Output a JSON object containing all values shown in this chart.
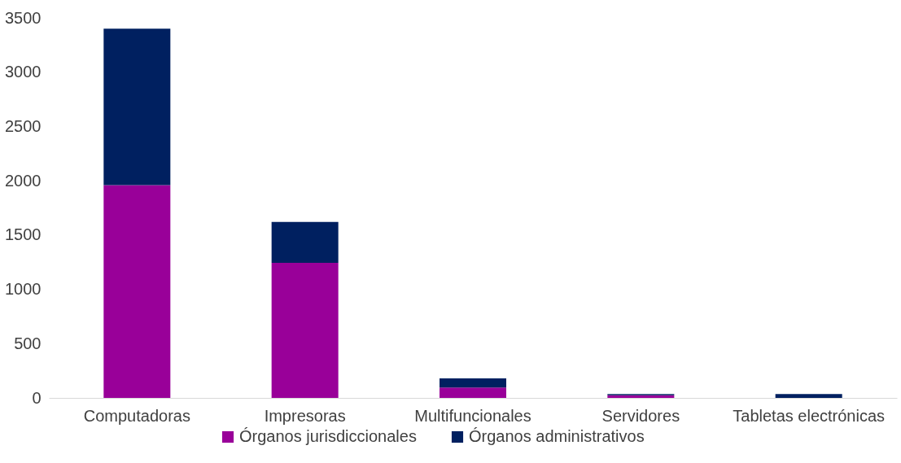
{
  "chart_data": {
    "type": "bar",
    "stacked": true,
    "categories": [
      "Computadoras",
      "Impresoras",
      "Multifuncionales",
      "Servidores",
      "Tabletas electrónicas"
    ],
    "series": [
      {
        "name": "Órganos jurisdiccionales",
        "color": "#990099",
        "values": [
          1960,
          1245,
          95,
          25,
          0
        ]
      },
      {
        "name": "Órganos administrativos",
        "color": "#002060",
        "values": [
          1440,
          375,
          85,
          10,
          35
        ]
      }
    ],
    "ylim": [
      0,
      3500
    ],
    "yticks": [
      0,
      500,
      1000,
      1500,
      2000,
      2500,
      3000,
      3500
    ],
    "grid": false,
    "legend": "bottom"
  }
}
